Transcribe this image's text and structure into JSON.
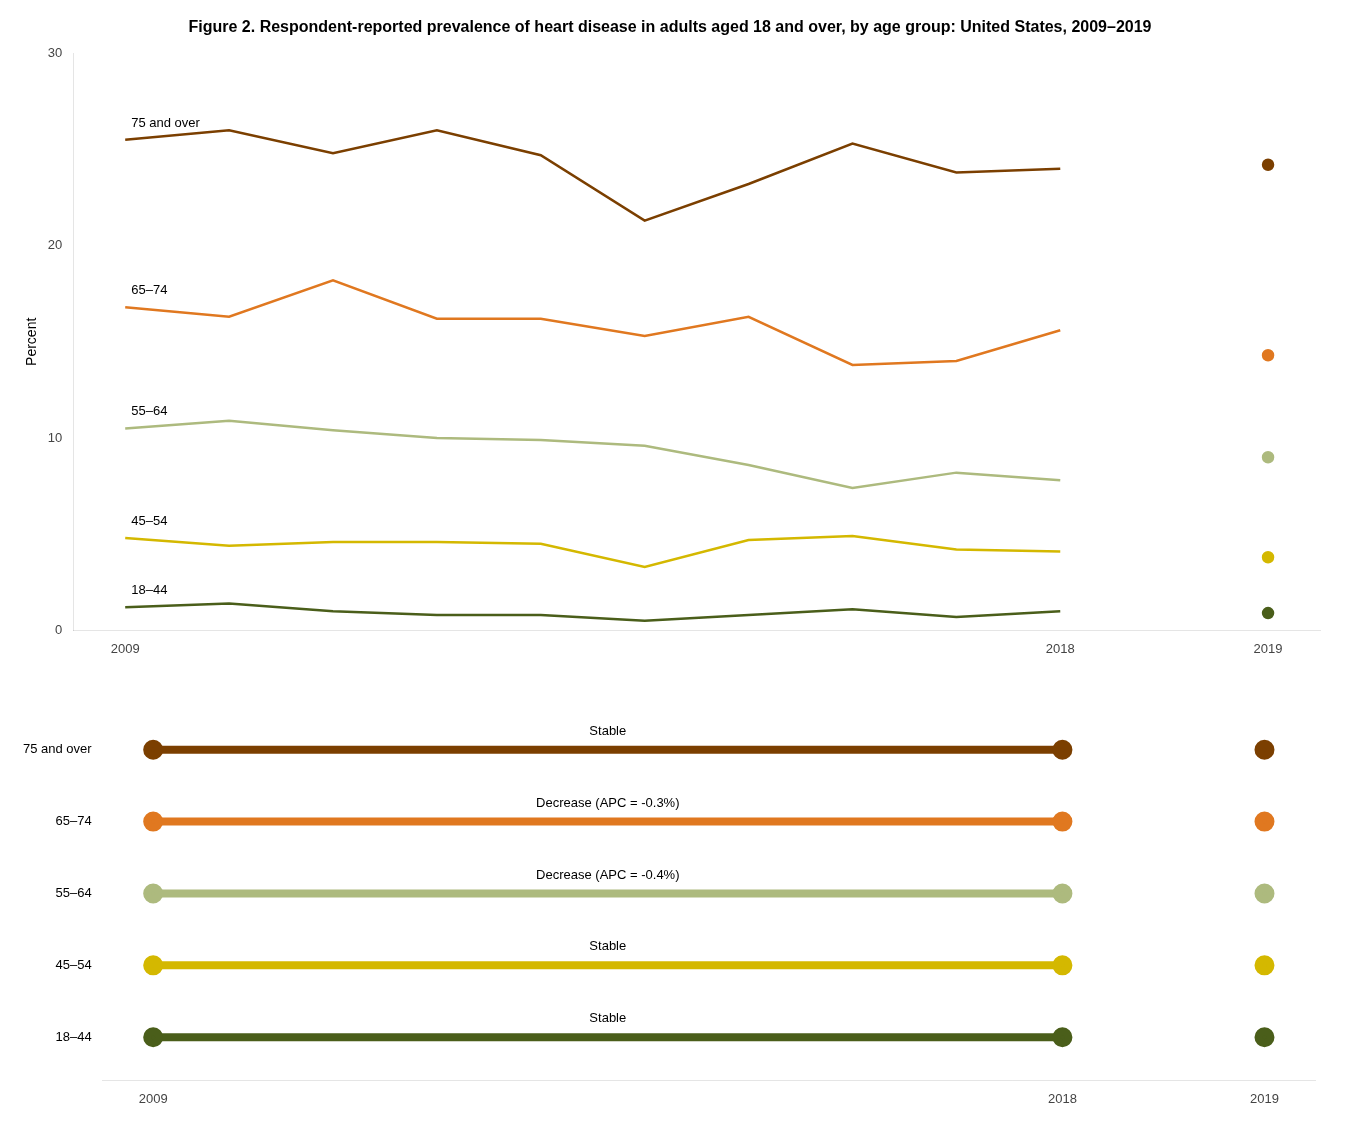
{
  "chart_data": {
    "type": "line",
    "title": "Figure 2. Respondent-reported prevalence of heart disease in adults aged 18 and over, by age group: United States, 2009–2019",
    "ylabel": "Percent",
    "categories": [
      "2009",
      null,
      null,
      null,
      null,
      null,
      null,
      null,
      null,
      "2018",
      null,
      "2019"
    ],
    "series": [
      {
        "name": "75 and over",
        "color": "#7B3F00",
        "annotation": "Stable",
        "values": [
          25.5,
          26.0,
          24.8,
          26.0,
          24.7,
          21.3,
          23.2,
          25.3,
          23.8,
          24.0,
          null,
          24.2
        ]
      },
      {
        "name": "65–74",
        "color": "#E07820",
        "annotation": "Decrease (APC = -0.3%)",
        "values": [
          16.8,
          16.3,
          18.2,
          16.2,
          16.2,
          15.3,
          16.3,
          13.8,
          14.0,
          15.6,
          null,
          14.3
        ]
      },
      {
        "name": "55–64",
        "color": "#ADBA7E",
        "annotation": "Decrease (APC = -0.4%)",
        "values": [
          10.5,
          10.9,
          10.4,
          10.0,
          9.9,
          9.6,
          8.6,
          7.4,
          8.2,
          7.8,
          null,
          9.0
        ]
      },
      {
        "name": "45–54",
        "color": "#D4B800",
        "annotation": "Stable",
        "values": [
          4.8,
          4.4,
          4.6,
          4.6,
          4.5,
          3.3,
          4.7,
          4.9,
          4.2,
          4.1,
          null,
          3.8
        ]
      },
      {
        "name": "18–44",
        "color": "#4A5E1A",
        "annotation": "Stable",
        "values": [
          1.2,
          1.4,
          1.0,
          0.8,
          0.8,
          0.5,
          0.8,
          1.1,
          0.7,
          1.0,
          null,
          0.9
        ]
      }
    ],
    "ylim": [
      0,
      30
    ],
    "yticks": [
      0,
      10,
      20,
      30
    ],
    "grid": false
  }
}
